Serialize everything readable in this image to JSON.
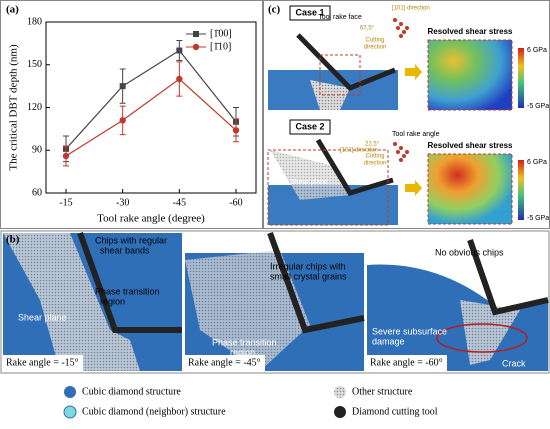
{
  "chart_data": {
    "type": "line",
    "panel": "(a)",
    "xlabel": "Tool rake angle (degree)",
    "ylabel": "The critical DBT depth (nm)",
    "categories": [
      "-15",
      "-30",
      "-45",
      "-60"
    ],
    "series": [
      {
        "name": "[1̄00]",
        "color": "#444444",
        "marker": "square",
        "values": [
          91,
          135,
          160,
          110
        ],
        "errors": [
          9,
          12,
          7,
          10
        ]
      },
      {
        "name": "[1̄10]",
        "color": "#c0392b",
        "marker": "circle",
        "values": [
          86,
          111,
          140,
          104
        ],
        "errors": [
          7,
          10,
          12,
          8
        ]
      }
    ],
    "ylim": [
      60,
      180
    ],
    "yticks": [
      60,
      90,
      120,
      150,
      180
    ],
    "legend": "upper right"
  },
  "panel_b": {
    "label": "(b)",
    "img1": {
      "chips": [
        "Chips with regular",
        "shear bands"
      ],
      "phase": [
        "Phase transition",
        "region"
      ],
      "shear": "Shear plane",
      "rake": "Rake angle = -15°"
    },
    "img2": {
      "chips": [
        "Irregular chips with",
        "small crystal grains"
      ],
      "phase": [
        "Phase transition",
        "region"
      ],
      "rake": "Rake angle = -45°"
    },
    "img3": {
      "chips": "No obvious chips",
      "damage": [
        "Severe subsurface",
        "damage"
      ],
      "crack": "Crack",
      "rake": "Rake angle = -60°"
    }
  },
  "panel_c": {
    "label": "(c)",
    "case1": {
      "title": "Case 1",
      "face": "Tool rake face",
      "dir": "[101] direction",
      "angle": "67.5°",
      "cut": [
        "Cutting",
        "direction"
      ],
      "rss": "Resolved shear stress",
      "max": "6 GPa",
      "min": "-5 GPa"
    },
    "case2": {
      "title": "Case 2",
      "dir": "[101] direction",
      "rakeangle": "Tool rake angle",
      "angle": "22.5°",
      "cut": [
        "Cutting",
        "direction"
      ],
      "shear": "Shear plane",
      "rss": "Resolved shear stress",
      "max": "6 GPa",
      "min": "-5 GPa"
    }
  },
  "legend": [
    "Cubic diamond structure",
    "Cubic diamond (neighbor) structure",
    "Other structure",
    "Diamond cutting tool"
  ]
}
